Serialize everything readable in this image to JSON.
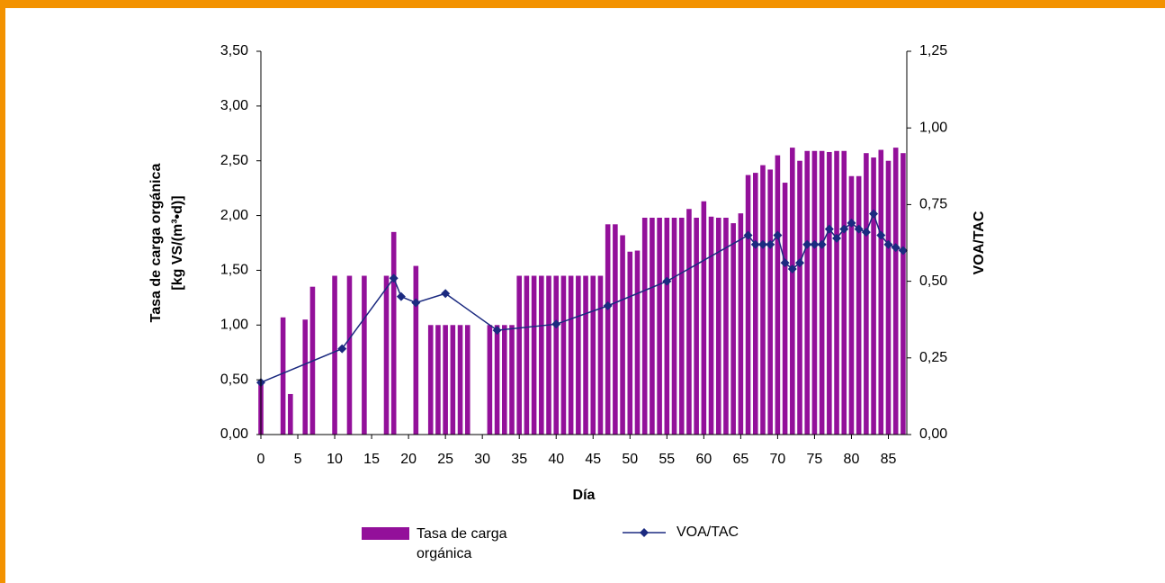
{
  "chart_data": {
    "type": "bar",
    "xlabel": "Día",
    "ylabel": [
      "Tasa de carga orgánica",
      "[kg VS/(m³•d)]"
    ],
    "y2label": "VOA/TAC",
    "xlim": [
      0,
      87.5
    ],
    "xticks": [
      0,
      5,
      10,
      15,
      20,
      25,
      30,
      35,
      40,
      45,
      50,
      55,
      60,
      65,
      70,
      75,
      80,
      85
    ],
    "ylim": [
      0,
      3.5
    ],
    "yticks": [
      {
        "value": 0,
        "label": "0,00"
      },
      {
        "value": 0.5,
        "label": "0,50"
      },
      {
        "value": 1,
        "label": "1,00"
      },
      {
        "value": 1.5,
        "label": "1,50"
      },
      {
        "value": 2,
        "label": "2,00"
      },
      {
        "value": 2.5,
        "label": "2,50"
      },
      {
        "value": 3,
        "label": "3,00"
      },
      {
        "value": 3.5,
        "label": "3,50"
      }
    ],
    "y2lim": [
      0,
      1.25
    ],
    "y2ticks": [
      {
        "value": 0,
        "label": "0,00"
      },
      {
        "value": 0.25,
        "label": "0,25"
      },
      {
        "value": 0.5,
        "label": "0,50"
      },
      {
        "value": 0.75,
        "label": "0,75"
      },
      {
        "value": 1,
        "label": "1,00"
      },
      {
        "value": 1.25,
        "label": "1,25"
      }
    ],
    "series": [
      {
        "name": "Tasa de carga orgánica",
        "color": "#93109a",
        "type": "bar",
        "x": [
          0,
          3,
          4,
          6,
          7,
          10,
          12,
          14,
          17,
          18,
          21,
          23,
          24,
          25,
          26,
          27,
          28,
          31,
          32,
          33,
          34,
          35,
          36,
          37,
          38,
          39,
          40,
          41,
          42,
          43,
          44,
          45,
          46,
          47,
          48,
          49,
          50,
          51,
          52,
          53,
          54,
          55,
          56,
          57,
          58,
          59,
          60,
          61,
          62,
          63,
          64,
          65,
          66,
          67,
          68,
          69,
          70,
          71,
          72,
          73,
          74,
          75,
          76,
          77,
          78,
          79,
          80,
          81,
          82,
          83,
          84,
          85,
          86,
          87
        ],
        "values": [
          0.48,
          1.07,
          0.37,
          1.05,
          1.35,
          1.45,
          1.45,
          1.45,
          1.45,
          1.85,
          1.54,
          1.0,
          1.0,
          1.0,
          1.0,
          1.0,
          1.0,
          1.0,
          1.0,
          1.0,
          1.0,
          1.45,
          1.45,
          1.45,
          1.45,
          1.45,
          1.45,
          1.45,
          1.45,
          1.45,
          1.45,
          1.45,
          1.45,
          1.92,
          1.92,
          1.82,
          1.67,
          1.68,
          1.98,
          1.98,
          1.98,
          1.98,
          1.98,
          1.98,
          2.06,
          1.98,
          2.13,
          1.99,
          1.98,
          1.98,
          1.93,
          2.02,
          2.37,
          2.39,
          2.46,
          2.42,
          2.55,
          2.3,
          2.62,
          2.5,
          2.59,
          2.59,
          2.59,
          2.58,
          2.59,
          2.59,
          2.36,
          2.36,
          2.57,
          2.53,
          2.6,
          2.5,
          2.62,
          2.57
        ]
      },
      {
        "name": "VOA/TAC",
        "color": "#1b2a80",
        "type": "line",
        "axis": "y2",
        "x": [
          0,
          11,
          18,
          19,
          21,
          25,
          32,
          40,
          47,
          55,
          66,
          67,
          68,
          69,
          70,
          71,
          72,
          73,
          74,
          75,
          76,
          77,
          78,
          79,
          80,
          81,
          82,
          83,
          84,
          85,
          86,
          87
        ],
        "values": [
          0.17,
          0.28,
          0.51,
          0.45,
          0.43,
          0.46,
          0.34,
          0.36,
          0.42,
          0.5,
          0.65,
          0.62,
          0.62,
          0.62,
          0.65,
          0.56,
          0.54,
          0.56,
          0.62,
          0.62,
          0.62,
          0.67,
          0.64,
          0.67,
          0.69,
          0.67,
          0.66,
          0.72,
          0.65,
          0.62,
          0.61,
          0.6
        ]
      }
    ]
  }
}
